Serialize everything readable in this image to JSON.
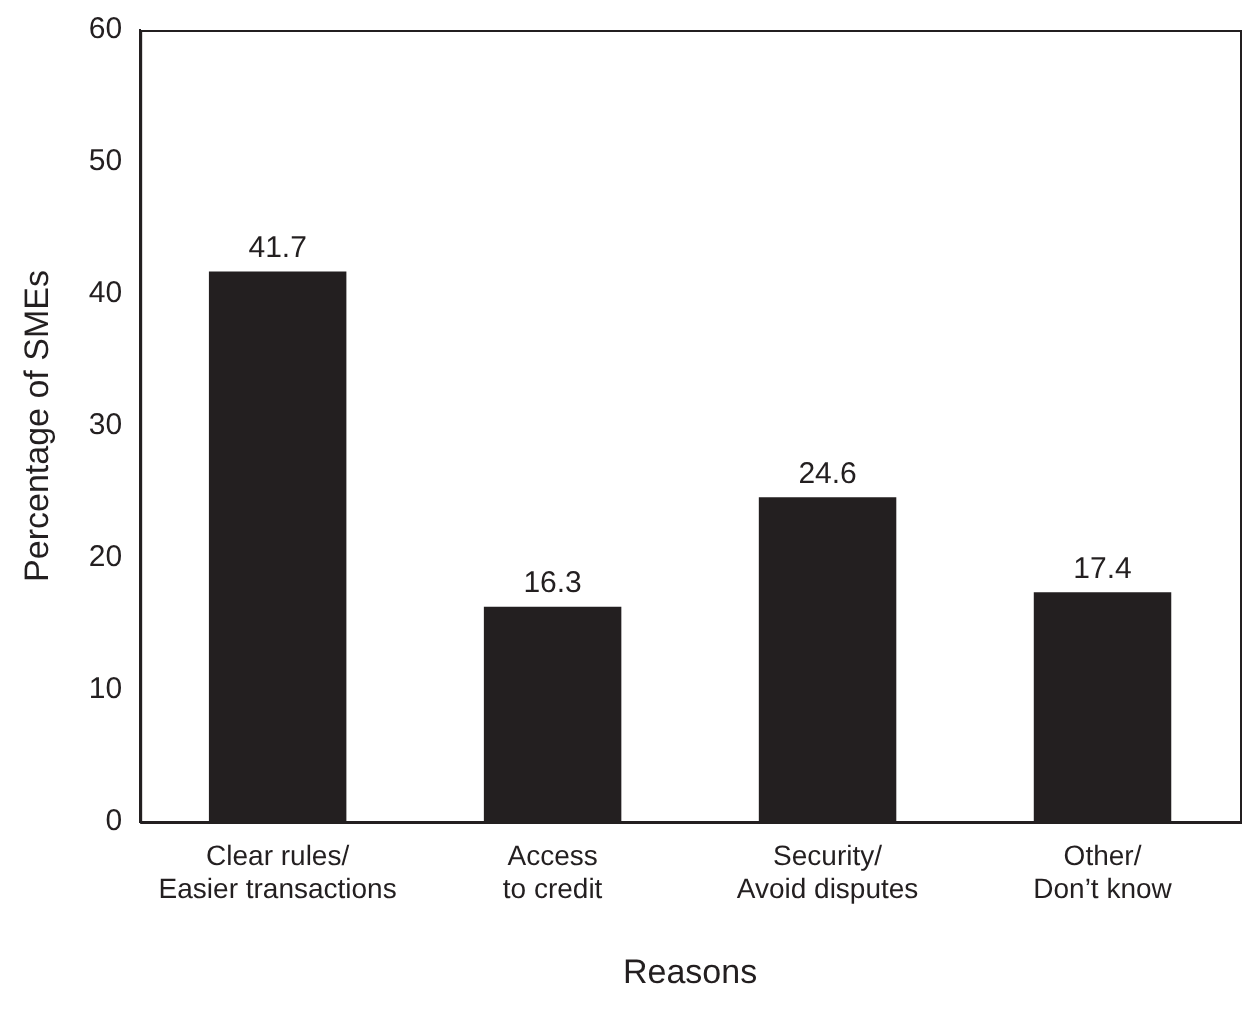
{
  "chart_data": {
    "type": "bar",
    "xlabel": "Reasons",
    "ylabel": "Percentage of SMEs",
    "categories": [
      "Clear rules/\nEasier transactions",
      "Access\nto credit",
      "Security/\nAvoid disputes",
      "Other/\nDon’t know"
    ],
    "values": [
      41.7,
      16.3,
      24.6,
      17.4
    ],
    "color": "#231f20",
    "ylim": [
      0,
      60
    ],
    "yticks": [
      0,
      10,
      20,
      30,
      40,
      50,
      60
    ],
    "grid": false,
    "legend": false,
    "data_labels": true
  }
}
